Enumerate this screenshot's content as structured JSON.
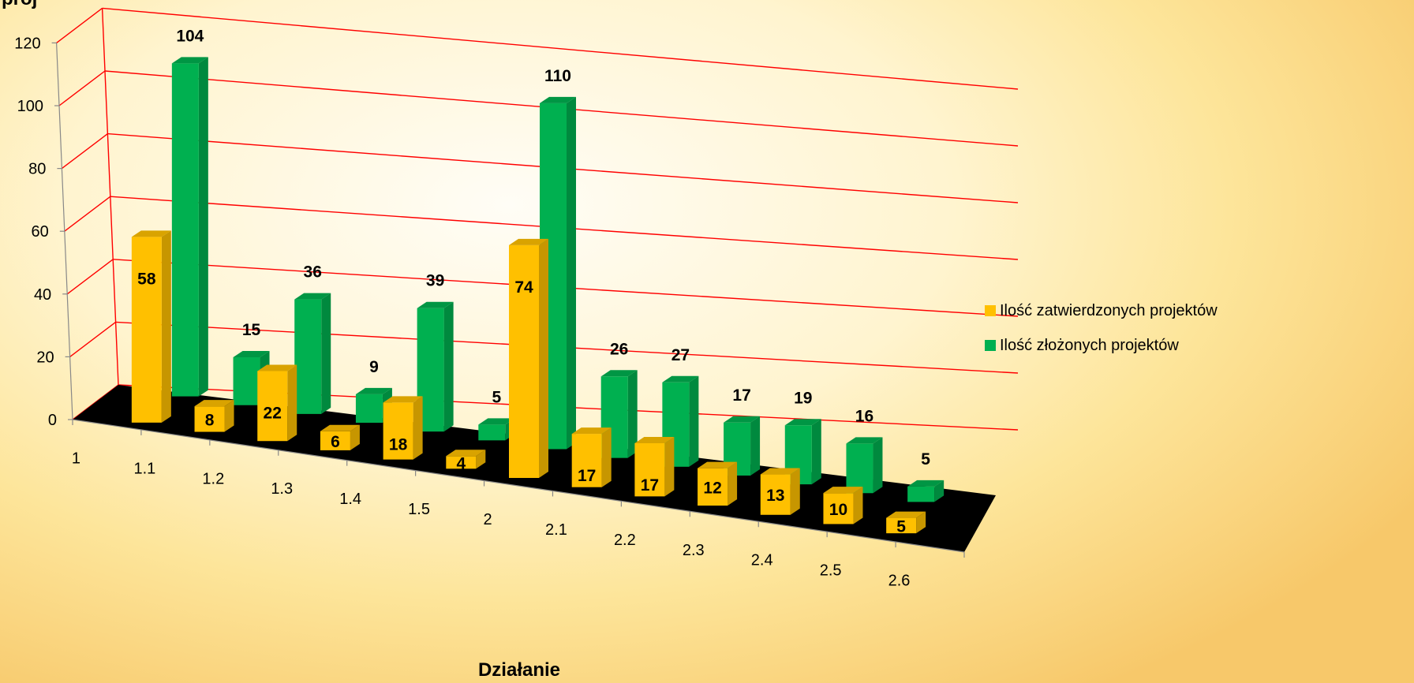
{
  "chart_data": {
    "type": "bar",
    "title": "",
    "xlabel": "Działanie",
    "ylabel": "",
    "ylabel_partial": "proj",
    "categories": [
      "1",
      "1.1",
      "1.2",
      "1.3",
      "1.4",
      "1.5",
      "2",
      "2.1",
      "2.2",
      "2.3",
      "2.4",
      "2.5",
      "2.6"
    ],
    "series": [
      {
        "name": "Ilość zatwierdzonych projektów",
        "values": [
          58,
          8,
          22,
          6,
          18,
          4,
          74,
          17,
          17,
          12,
          13,
          10,
          5
        ],
        "color": "#ffc000"
      },
      {
        "name": "Ilość złożonych projektów",
        "values": [
          104,
          15,
          36,
          9,
          39,
          5,
          110,
          26,
          27,
          17,
          19,
          16,
          5
        ],
        "color": "#00b050"
      }
    ],
    "ylim": [
      0,
      120
    ],
    "yticks": [
      0,
      20,
      40,
      60,
      80,
      100,
      120
    ],
    "grid": true,
    "grid_color": "#ff0000",
    "floor_color": "#000000",
    "legend_position": "right",
    "three_d": true
  }
}
